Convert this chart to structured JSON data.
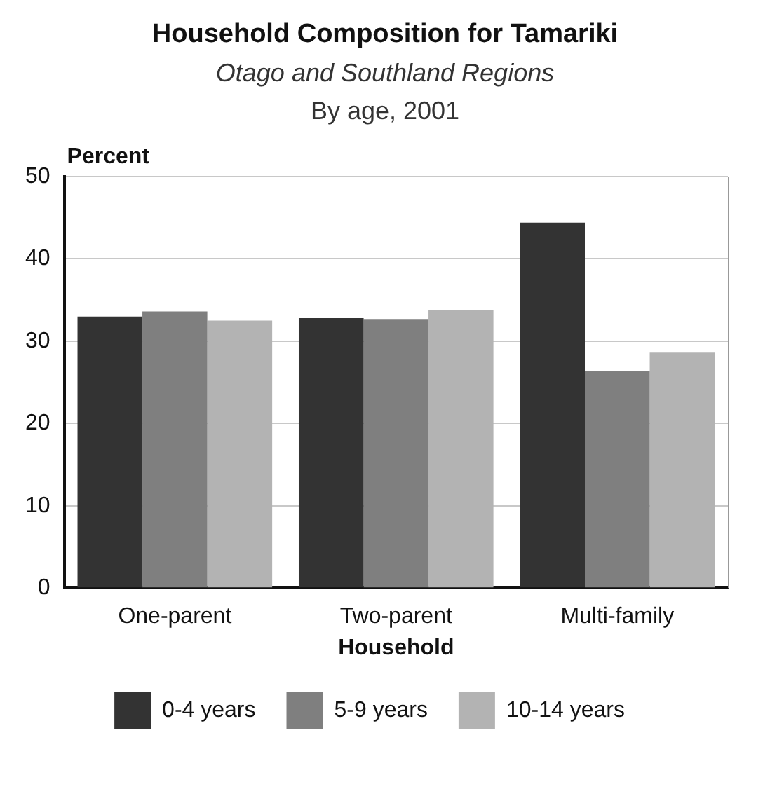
{
  "chart_data": {
    "type": "bar",
    "title": "Household Composition for Tamariki",
    "subtitle": "Otago and Southland Regions",
    "annotations": [
      "By age, 2001"
    ],
    "xlabel": "Household",
    "ylabel": "Percent",
    "categories": [
      "One-parent",
      "Two-parent",
      "Multi-family"
    ],
    "series": [
      {
        "name": "0-4 years",
        "color": "#333333",
        "values": [
          33.0,
          32.8,
          44.4
        ]
      },
      {
        "name": "5-9 years",
        "color": "#7f7f7f",
        "values": [
          33.6,
          32.7,
          26.4
        ]
      },
      {
        "name": "10-14 years",
        "color": "#b3b3b3",
        "values": [
          32.5,
          33.8,
          28.6
        ]
      }
    ],
    "ylim": [
      0,
      50
    ],
    "yticks": [
      0,
      10,
      20,
      30,
      40,
      50
    ],
    "grid": "y",
    "legend": "bottom"
  }
}
